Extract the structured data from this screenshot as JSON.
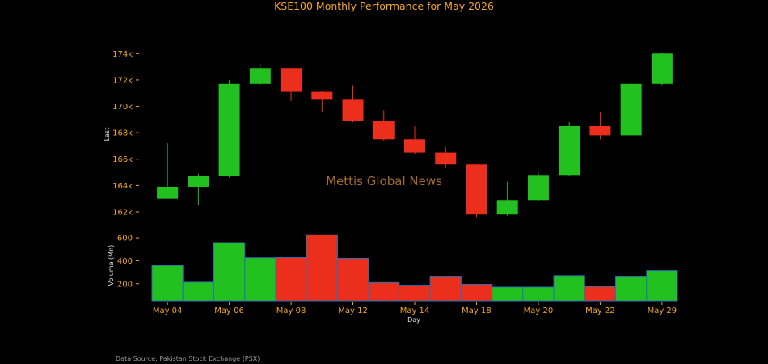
{
  "chart_data": {
    "type": "candlestick",
    "title": "KSE100 Monthly Performance for May 2026",
    "xlabel": "Day",
    "price_panel": {
      "ylabel": "Last",
      "ylim": [
        161200,
        175000
      ],
      "yticks": [
        162000,
        164000,
        166000,
        168000,
        170000,
        172000,
        174000
      ],
      "ytick_labels": [
        "162k",
        "164k",
        "166k",
        "168k",
        "170k",
        "172k",
        "174k"
      ]
    },
    "volume_panel": {
      "ylabel": "Volume (Mn)",
      "ylim": [
        50,
        650
      ],
      "yticks": [
        200,
        400,
        600
      ],
      "ytick_labels": [
        "200",
        "400",
        "600"
      ]
    },
    "xtick_labels": [
      "May 04",
      "May 06",
      "May 08",
      "May 12",
      "May 14",
      "May 18",
      "May 20",
      "May 22",
      "May 29"
    ],
    "xtick_indices": [
      0,
      2,
      4,
      6,
      8,
      10,
      12,
      14,
      16
    ],
    "candles": [
      {
        "open": 163000,
        "high": 167200,
        "low": 163000,
        "close": 163900,
        "volume": 358
      },
      {
        "open": 163900,
        "high": 164900,
        "low": 162500,
        "close": 164700,
        "volume": 213
      },
      {
        "open": 164700,
        "high": 172000,
        "low": 164600,
        "close": 171700,
        "volume": 558
      },
      {
        "open": 171700,
        "high": 173200,
        "low": 171600,
        "close": 172900,
        "volume": 426
      },
      {
        "open": 172900,
        "high": 172900,
        "low": 170400,
        "close": 171100,
        "volume": 428
      },
      {
        "open": 171100,
        "high": 171200,
        "low": 169600,
        "close": 170500,
        "volume": 627
      },
      {
        "open": 170500,
        "high": 171600,
        "low": 168800,
        "close": 168900,
        "volume": 421
      },
      {
        "open": 168900,
        "high": 169700,
        "low": 167400,
        "close": 167500,
        "volume": 210
      },
      {
        "open": 167500,
        "high": 168500,
        "low": 166400,
        "close": 166500,
        "volume": 187
      },
      {
        "open": 166500,
        "high": 166900,
        "low": 165300,
        "close": 165600,
        "volume": 265
      },
      {
        "open": 165600,
        "high": 165600,
        "low": 161600,
        "close": 161800,
        "volume": 195
      },
      {
        "open": 161800,
        "high": 164300,
        "low": 161700,
        "close": 162900,
        "volume": 170
      },
      {
        "open": 162900,
        "high": 165000,
        "low": 162800,
        "close": 164800,
        "volume": 170
      },
      {
        "open": 164800,
        "high": 168800,
        "low": 164700,
        "close": 168500,
        "volume": 270
      },
      {
        "open": 168500,
        "high": 169600,
        "low": 167500,
        "close": 167800,
        "volume": 175
      },
      {
        "open": 167800,
        "high": 171900,
        "low": 167800,
        "close": 171700,
        "volume": 265
      },
      {
        "open": 171700,
        "high": 174100,
        "low": 171600,
        "close": 174000,
        "volume": 314
      }
    ],
    "colors": {
      "up": "#22c11f",
      "down": "#ec2e1c",
      "background": "#000000",
      "ticks": "#f5a623",
      "vol_border": "#2a6fb8"
    },
    "watermark": "Mettis Global News",
    "source": "Data Source: Pakistan Stock Exchange (PSX)"
  }
}
